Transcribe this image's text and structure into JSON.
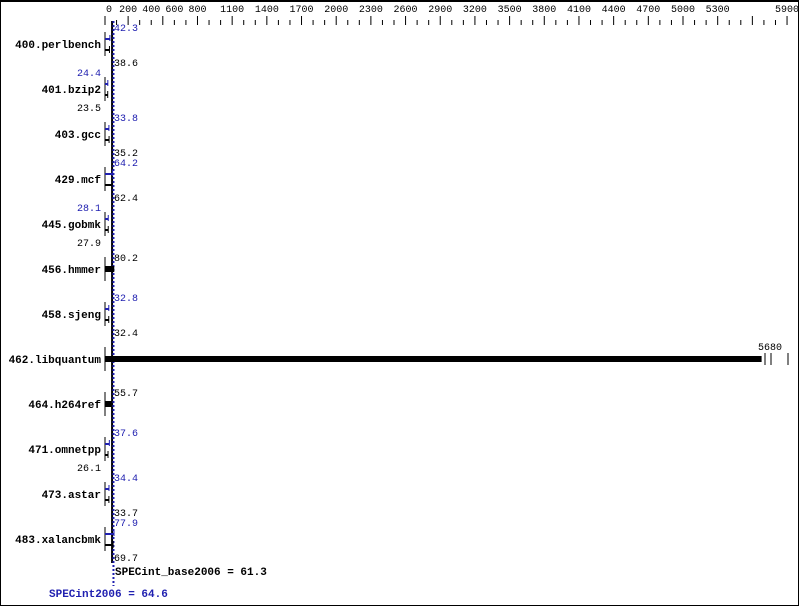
{
  "chart_data": {
    "type": "bar",
    "orientation": "horizontal",
    "x_ticks": [
      0,
      200,
      400,
      600,
      800,
      1100,
      1400,
      1700,
      2000,
      2300,
      2600,
      2900,
      3200,
      3500,
      3800,
      4100,
      4400,
      4700,
      5000,
      5300,
      5900
    ],
    "xlim": [
      0,
      5900
    ],
    "categories": [
      "400.perlbench",
      "401.bzip2",
      "403.gcc",
      "429.mcf",
      "445.gobmk",
      "456.hmmer",
      "458.sjeng",
      "462.libquantum",
      "464.h264ref",
      "471.omnetpp",
      "473.astar",
      "483.xalancbmk"
    ],
    "series": [
      {
        "name": "SPECint2006",
        "color": "#2020b0",
        "values": [
          42.3,
          24.4,
          33.8,
          64.2,
          28.1,
          null,
          32.8,
          null,
          null,
          37.6,
          34.4,
          77.9
        ]
      },
      {
        "name": "SPECint_base2006",
        "color": "#000000",
        "values": [
          38.6,
          23.5,
          35.2,
          62.4,
          27.9,
          80.2,
          32.4,
          5680,
          55.7,
          26.1,
          33.7,
          69.7
        ]
      }
    ],
    "summary": {
      "base_label": "SPECint_base2006 = 61.3",
      "base_value": 61.3,
      "peak_label": "SPECint2006 = 64.6",
      "peak_value": 64.6
    },
    "grid": false
  }
}
